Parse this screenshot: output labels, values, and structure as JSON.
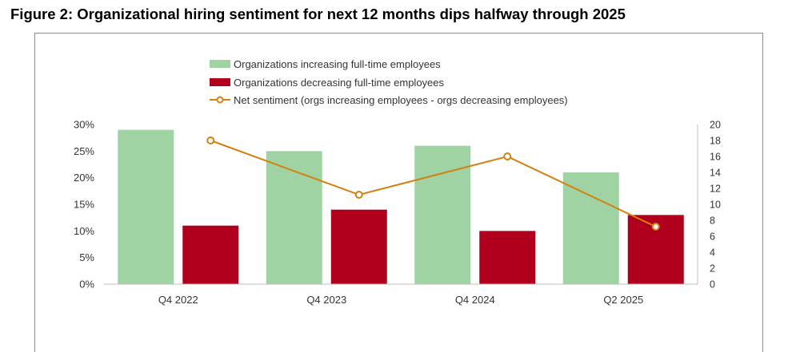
{
  "title": "Figure 2: Organizational hiring sentiment for next 12 months dips halfway through 2025",
  "chart_data": {
    "type": "bar",
    "categories": [
      "Q4 2022",
      "Q4 2023",
      "Q4 2024",
      "Q2 2025"
    ],
    "series": [
      {
        "name": "Organizations increasing full-time employees",
        "type": "bar",
        "axis": "left",
        "color": "#a0d3a4",
        "values": [
          29,
          25,
          26,
          21
        ]
      },
      {
        "name": "Organizations decreasing full-time employees",
        "type": "bar",
        "axis": "left",
        "color": "#b0001e",
        "values": [
          11,
          14,
          10,
          13
        ]
      },
      {
        "name": "Net sentiment (orgs increasing employees - orgs decreasing employees)",
        "type": "line",
        "axis": "right",
        "color": "#d4800f",
        "values": [
          18,
          11.2,
          16,
          7.2
        ]
      }
    ],
    "y_left": {
      "range": [
        0,
        30
      ],
      "ticks": [
        "0%",
        "5%",
        "10%",
        "15%",
        "20%",
        "25%",
        "30%"
      ]
    },
    "y_right": {
      "range": [
        0,
        20
      ],
      "ticks": [
        "0",
        "2",
        "4",
        "6",
        "8",
        "10",
        "12",
        "14",
        "16",
        "18",
        "20"
      ]
    },
    "legend": "top-center",
    "grid": false
  }
}
